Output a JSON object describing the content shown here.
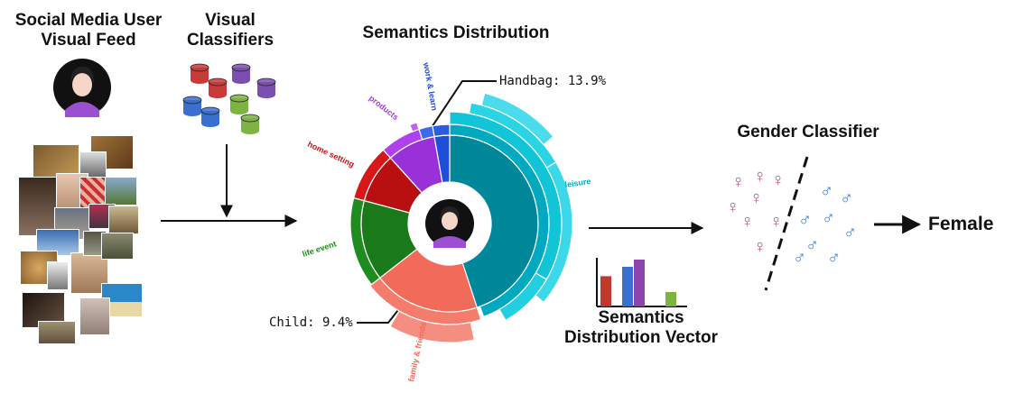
{
  "labels": {
    "feed_line1": "Social Media User",
    "feed_line2": "Visual Feed",
    "classifiers_line1": "Visual",
    "classifiers_line2": "Classifiers",
    "semantics_title": "Semantics Distribution",
    "handbag": "Handbag: 13.9%",
    "child": "Child: 9.4%",
    "vector_line1": "Semantics",
    "vector_line2": "Distribution Vector",
    "gender_title": "Gender Classifier",
    "result": "Female"
  },
  "ring_labels": {
    "work_learn": "work & learn",
    "products": "products",
    "home_setting": "home setting",
    "life_event": "life event",
    "leisure": "leisure",
    "family_friends": "family & friends"
  },
  "colors": {
    "work_learn": "#1f4fd8",
    "products": "#a638e6",
    "home_setting": "#c81414",
    "life_event": "#1e8c1e",
    "leisure": "#00b4cc",
    "family_friends": "#f26a5a"
  },
  "gender_symbols": {
    "female": "♀",
    "male": "♂"
  },
  "chart_data": {
    "type": "bar",
    "categories": [
      "",
      "",
      "",
      ""
    ],
    "values": [
      0.42,
      0.55,
      0.65,
      0.2
    ],
    "colors": [
      "#c0392b",
      "#3a6fcf",
      "#8e44ad",
      "#7cb342"
    ]
  }
}
